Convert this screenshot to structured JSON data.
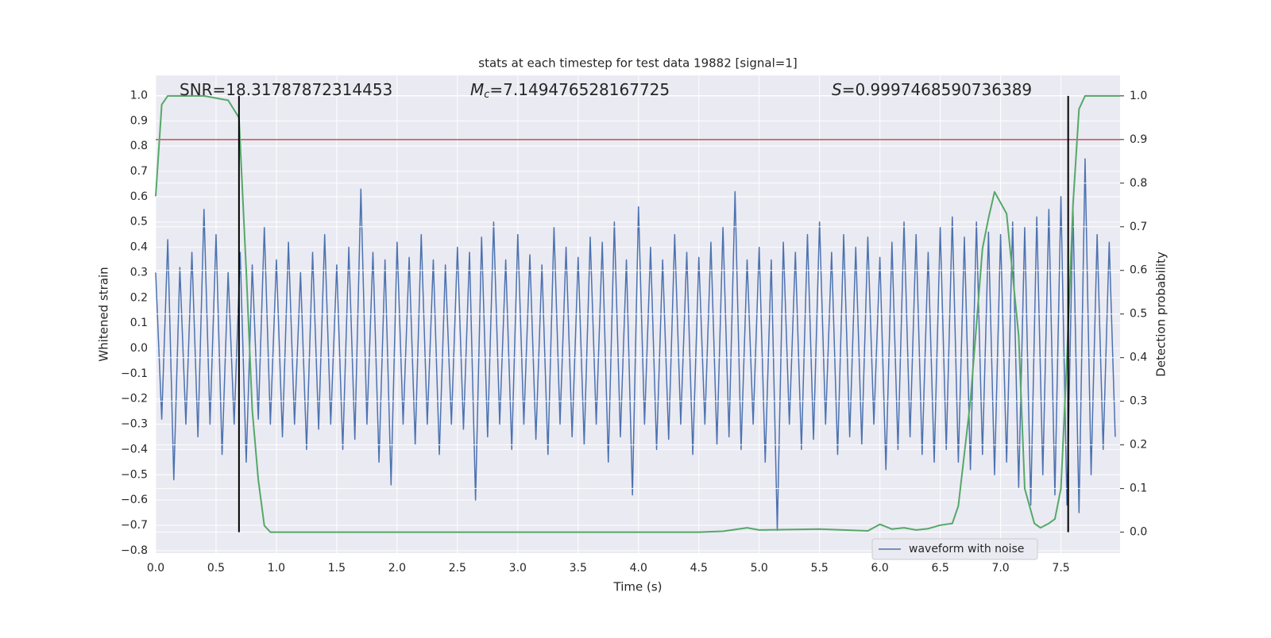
{
  "chart_data": {
    "type": "line",
    "title": "stats at each timestep for test data 19882 [signal=1]",
    "xlabel": "Time (s)",
    "ylabel": "Whitened strain",
    "y2label": "Detection probability",
    "annotations": [
      {
        "text": "SNR=18.31787872314453"
      },
      {
        "symbol": "M",
        "sub": "c",
        "text": "=7.149476528167725"
      },
      {
        "symbol": "S",
        "text": "=0.9997468590736389"
      }
    ],
    "xlim": [
      0,
      7.99
    ],
    "ylim": [
      -0.81,
      1.08
    ],
    "y2lim": [
      -0.048,
      1.047
    ],
    "xticks": [
      {
        "value": 0,
        "label": "0.0"
      },
      0.5,
      {
        "value": 1,
        "label": "1.0"
      },
      1.5,
      {
        "value": 2,
        "label": "2.0"
      },
      2.5,
      {
        "value": 3,
        "label": "3.0"
      },
      3.5,
      {
        "value": 4,
        "label": "4.0"
      },
      4.5,
      {
        "value": 5,
        "label": "5.0"
      },
      5.5,
      {
        "value": 6,
        "label": "6.0"
      },
      6.5,
      {
        "value": 7,
        "label": "7.0"
      },
      7.5
    ],
    "yticks": [
      {
        "value": -0.8,
        "label": "−0.8"
      },
      {
        "value": -0.7,
        "label": "−0.7"
      },
      {
        "value": -0.6,
        "label": "−0.6"
      },
      {
        "value": -0.5,
        "label": "−0.5"
      },
      {
        "value": -0.4,
        "label": "−0.4"
      },
      {
        "value": -0.3,
        "label": "−0.3"
      },
      {
        "value": -0.2,
        "label": "−0.2"
      },
      {
        "value": -0.1,
        "label": "−0.1"
      },
      {
        "value": 0,
        "label": "0.0"
      },
      0.1,
      0.2,
      0.3,
      0.4,
      0.5,
      0.6,
      0.7,
      0.8,
      0.9,
      {
        "value": 1,
        "label": "1.0"
      }
    ],
    "y2ticks": [
      {
        "value": 0,
        "label": "0.0"
      },
      0.1,
      0.2,
      0.3,
      0.4,
      0.5,
      0.6,
      0.7,
      0.8,
      0.9,
      {
        "value": 1,
        "label": "1.0"
      }
    ],
    "grid": true,
    "legend_loc": "lower right",
    "threshold": {
      "value": 0.9,
      "axis": "y2",
      "color": "#c44e52"
    },
    "vlines": {
      "x": [
        0.69,
        7.56
      ],
      "ylim": [
        0,
        1
      ],
      "axis": "y2",
      "color": "#000000"
    },
    "series": [
      {
        "name": "waveform with noise",
        "color": "#4c72b0",
        "x": [
          0,
          0.05,
          0.1,
          0.15,
          0.2,
          0.25,
          0.3,
          0.35,
          0.4,
          0.45,
          0.5,
          0.55,
          0.6,
          0.65,
          0.7,
          0.75,
          0.8,
          0.85,
          0.9,
          0.95,
          1,
          1.05,
          1.1,
          1.15,
          1.2,
          1.25,
          1.3,
          1.35,
          1.4,
          1.45,
          1.5,
          1.55,
          1.6,
          1.65,
          1.7,
          1.75,
          1.8,
          1.85,
          1.9,
          1.95,
          2,
          2.05,
          2.1,
          2.15,
          2.2,
          2.25,
          2.3,
          2.35,
          2.4,
          2.45,
          2.5,
          2.55,
          2.6,
          2.65,
          2.7,
          2.75,
          2.8,
          2.85,
          2.9,
          2.95,
          3,
          3.05,
          3.1,
          3.15,
          3.2,
          3.25,
          3.3,
          3.35,
          3.4,
          3.45,
          3.5,
          3.55,
          3.6,
          3.65,
          3.7,
          3.75,
          3.8,
          3.85,
          3.9,
          3.95,
          4,
          4.05,
          4.1,
          4.15,
          4.2,
          4.25,
          4.3,
          4.35,
          4.4,
          4.45,
          4.5,
          4.55,
          4.6,
          4.65,
          4.7,
          4.75,
          4.8,
          4.85,
          4.9,
          4.95,
          5,
          5.05,
          5.1,
          5.15,
          5.2,
          5.25,
          5.3,
          5.35,
          5.4,
          5.45,
          5.5,
          5.55,
          5.6,
          5.65,
          5.7,
          5.75,
          5.8,
          5.85,
          5.9,
          5.95,
          6,
          6.05,
          6.1,
          6.15,
          6.2,
          6.25,
          6.3,
          6.35,
          6.4,
          6.45,
          6.5,
          6.55,
          6.6,
          6.65,
          6.7,
          6.75,
          6.8,
          6.85,
          6.9,
          6.95,
          7,
          7.05,
          7.1,
          7.15,
          7.2,
          7.25,
          7.3,
          7.35,
          7.4,
          7.45,
          7.5,
          7.55,
          7.6,
          7.65,
          7.7,
          7.75,
          7.8,
          7.85,
          7.9,
          7.95
        ],
        "values": [
          0.3,
          -0.28,
          0.43,
          -0.52,
          0.32,
          -0.3,
          0.38,
          -0.35,
          0.55,
          -0.3,
          0.45,
          -0.42,
          0.3,
          -0.3,
          0.38,
          -0.45,
          0.33,
          -0.28,
          0.48,
          -0.3,
          0.35,
          -0.35,
          0.42,
          -0.3,
          0.3,
          -0.4,
          0.38,
          -0.32,
          0.45,
          -0.3,
          0.33,
          -0.4,
          0.4,
          -0.36,
          0.63,
          -0.3,
          0.38,
          -0.45,
          0.35,
          -0.54,
          0.42,
          -0.3,
          0.36,
          -0.38,
          0.45,
          -0.3,
          0.35,
          -0.42,
          0.33,
          -0.3,
          0.4,
          -0.32,
          0.38,
          -0.6,
          0.44,
          -0.35,
          0.5,
          -0.3,
          0.35,
          -0.4,
          0.45,
          -0.3,
          0.37,
          -0.36,
          0.33,
          -0.42,
          0.48,
          -0.3,
          0.4,
          -0.35,
          0.36,
          -0.38,
          0.44,
          -0.3,
          0.42,
          -0.45,
          0.5,
          -0.35,
          0.35,
          -0.58,
          0.56,
          -0.3,
          0.4,
          -0.4,
          0.35,
          -0.36,
          0.45,
          -0.3,
          0.38,
          -0.42,
          0.36,
          -0.3,
          0.42,
          -0.38,
          0.48,
          -0.35,
          0.62,
          -0.4,
          0.35,
          -0.3,
          0.4,
          -0.45,
          0.35,
          -0.72,
          0.42,
          -0.3,
          0.38,
          -0.4,
          0.45,
          -0.36,
          0.5,
          -0.3,
          0.38,
          -0.42,
          0.45,
          -0.35,
          0.4,
          -0.38,
          0.44,
          -0.3,
          0.36,
          -0.48,
          0.42,
          -0.4,
          0.5,
          -0.35,
          0.45,
          -0.42,
          0.38,
          -0.45,
          0.48,
          -0.4,
          0.52,
          -0.45,
          0.44,
          -0.48,
          0.5,
          -0.42,
          0.46,
          -0.5,
          0.45,
          -0.45,
          0.5,
          -0.55,
          0.48,
          -0.62,
          0.52,
          -0.5,
          0.55,
          -0.58,
          0.6,
          -0.62,
          0.55,
          -0.65,
          0.75,
          -0.5,
          0.45,
          -0.4,
          0.42,
          -0.35
        ]
      },
      {
        "color": "#55a868",
        "axis": "y2",
        "x": [
          0,
          0.05,
          0.1,
          0.2,
          0.4,
          0.6,
          0.69,
          0.75,
          0.8,
          0.85,
          0.9,
          0.95,
          1.5,
          2.5,
          3.5,
          4.5,
          4.7,
          4.9,
          5.0,
          5.5,
          5.9,
          6.0,
          6.1,
          6.2,
          6.3,
          6.4,
          6.5,
          6.6,
          6.65,
          6.75,
          6.85,
          6.9,
          6.95,
          7.05,
          7.15,
          7.2,
          7.28,
          7.33,
          7.4,
          7.45,
          7.5,
          7.55,
          7.6,
          7.65,
          7.7,
          7.99
        ],
        "values": [
          0.77,
          0.98,
          1.0,
          1.0,
          1.0,
          0.99,
          0.95,
          0.6,
          0.28,
          0.12,
          0.015,
          0.0,
          0.0,
          0.0,
          0.0,
          0.0,
          0.002,
          0.01,
          0.005,
          0.007,
          0.003,
          0.018,
          0.007,
          0.01,
          0.005,
          0.008,
          0.016,
          0.02,
          0.06,
          0.3,
          0.65,
          0.72,
          0.78,
          0.73,
          0.45,
          0.1,
          0.02,
          0.01,
          0.02,
          0.03,
          0.1,
          0.4,
          0.75,
          0.97,
          1.0,
          1.0
        ]
      }
    ]
  }
}
